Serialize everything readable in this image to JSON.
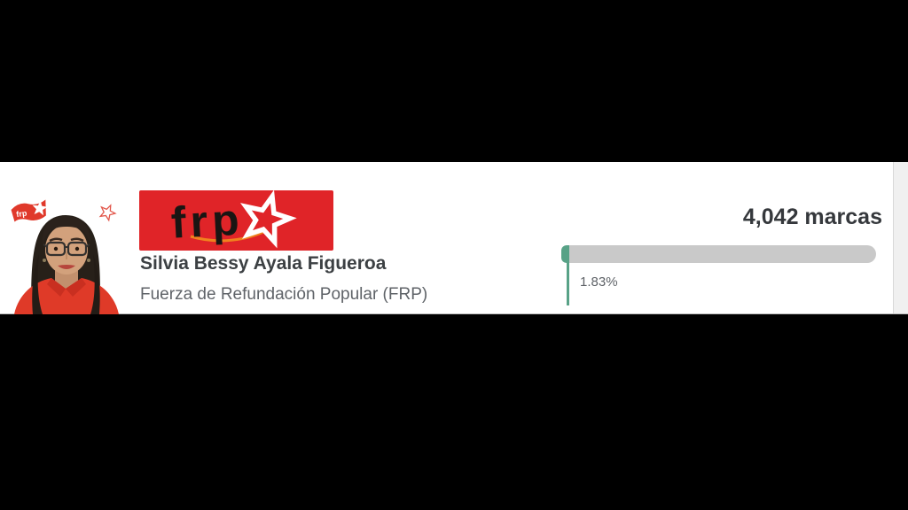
{
  "page": {
    "background_color": "#000000"
  },
  "result_card": {
    "candidate_name": "Silvia Bessy Ayala Figueroa",
    "party_full_name": "Fuerza de Refundación Popular (FRP)",
    "votes": "4,042 marcas",
    "percentage": "1.83%",
    "progress": {
      "value": 1.83,
      "max": 100
    },
    "party_logo": {
      "text": "frp",
      "background": "#e02428",
      "text_color": "#191513",
      "star_color": "#ffffff",
      "swoosh_color": "#f0821e"
    },
    "photo": {
      "flag_text": "frp",
      "flag_color": "#e0392b",
      "star_outline_color": "#e2574b"
    },
    "colors": {
      "bar_track": "#c9c9c9",
      "bar_fill": "#58a287",
      "name_text": "#3c4043",
      "secondary_text": "#5f6368",
      "votes_text": "#35383c"
    }
  }
}
